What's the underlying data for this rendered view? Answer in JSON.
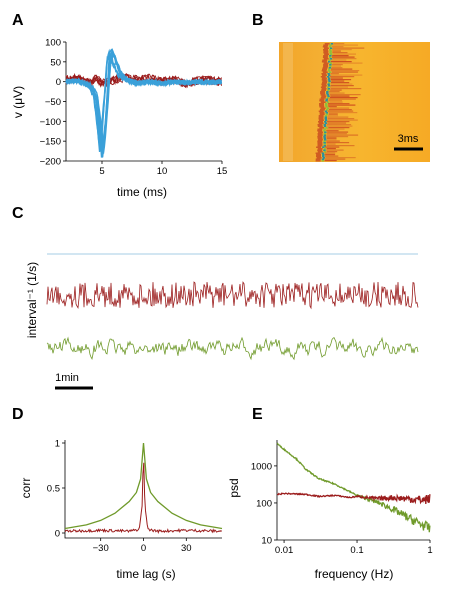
{
  "panels": {
    "a": "A",
    "b": "B",
    "c": "C",
    "d": "D",
    "e": "E"
  },
  "colors": {
    "blue": "#3aa0d9",
    "red": "#9b1c1c",
    "green": "#6f9a2a",
    "lightblue": "#b8d8ea"
  },
  "scalebars": {
    "b": "3ms",
    "c": "1min"
  },
  "chart_data": [
    {
      "id": "A",
      "type": "line",
      "xlabel": "time (ms)",
      "ylabel": "v (μV)",
      "xlim": [
        2,
        15
      ],
      "ylim": [
        -200,
        100
      ],
      "xticks": [
        "5",
        "10",
        "15"
      ],
      "yticks": [
        "100",
        "50",
        "0",
        "−50",
        "−100",
        "−150",
        "−200"
      ],
      "series": [
        {
          "color": "red",
          "x": [
            2,
            3,
            4,
            4.5,
            5,
            5.5,
            6,
            7,
            8,
            9,
            10,
            11,
            12,
            13,
            14,
            15
          ],
          "y": [
            5,
            8,
            -5,
            10,
            -5,
            0,
            5,
            10,
            5,
            8,
            0,
            5,
            -5,
            3,
            5,
            0
          ]
        },
        {
          "color": "blue",
          "x": [
            2,
            3,
            4,
            4.5,
            4.8,
            5,
            5.2,
            5.4,
            5.6,
            5.8,
            6,
            6.5,
            7,
            8,
            9,
            10,
            11,
            12,
            13,
            14,
            15
          ],
          "y": [
            0,
            2,
            -10,
            -40,
            -120,
            -185,
            -120,
            -40,
            60,
            75,
            60,
            20,
            5,
            -5,
            0,
            -5,
            0,
            -3,
            0,
            -2,
            0
          ]
        }
      ]
    },
    {
      "id": "B",
      "type": "heatmap",
      "colormap": "orange-red"
    },
    {
      "id": "C",
      "type": "line",
      "ylabel": "interval⁻¹ (1/s)",
      "series": [
        {
          "color": "lightblue"
        },
        {
          "color": "red"
        },
        {
          "color": "green"
        }
      ]
    },
    {
      "id": "D",
      "type": "line",
      "xlabel": "time lag (s)",
      "ylabel": "corr",
      "xlim": [
        -55,
        55
      ],
      "ylim": [
        0,
        1
      ],
      "xticks": [
        "−30",
        "0",
        "30"
      ],
      "yticks": [
        "0",
        "0.5",
        "1"
      ],
      "series": [
        {
          "color": "green",
          "x": [
            -55,
            -40,
            -30,
            -20,
            -10,
            -5,
            -2,
            0,
            2,
            5,
            10,
            20,
            30,
            40,
            55
          ],
          "y": [
            0.05,
            0.09,
            0.14,
            0.22,
            0.35,
            0.45,
            0.6,
            1.0,
            0.6,
            0.45,
            0.35,
            0.22,
            0.14,
            0.09,
            0.05
          ]
        },
        {
          "color": "red",
          "x": [
            -55,
            -30,
            -10,
            -3,
            -1,
            0,
            1,
            3,
            10,
            30,
            55
          ],
          "y": [
            0.02,
            0.03,
            0.02,
            0.04,
            0.3,
            0.9,
            0.3,
            0.04,
            0.02,
            0.03,
            0.02
          ]
        }
      ]
    },
    {
      "id": "E",
      "type": "line",
      "xlabel": "frequency (Hz)",
      "ylabel": "psd",
      "xscale": "log",
      "yscale": "log",
      "xlim": [
        0.008,
        1
      ],
      "ylim": [
        10,
        5000
      ],
      "xticks": [
        "0.01",
        "0.1",
        "1"
      ],
      "yticks": [
        "10",
        "100",
        "1000"
      ],
      "series": [
        {
          "color": "green",
          "x": [
            0.008,
            0.01,
            0.015,
            0.02,
            0.03,
            0.05,
            0.08,
            0.1,
            0.2,
            0.3,
            0.5,
            0.8,
            1
          ],
          "y": [
            4000,
            2800,
            1500,
            800,
            450,
            320,
            200,
            160,
            100,
            70,
            40,
            25,
            20
          ]
        },
        {
          "color": "red",
          "x": [
            0.008,
            0.01,
            0.02,
            0.03,
            0.05,
            0.08,
            0.1,
            0.2,
            0.3,
            0.5,
            0.8,
            1
          ],
          "y": [
            170,
            180,
            170,
            150,
            160,
            140,
            150,
            130,
            140,
            130,
            120,
            130
          ]
        }
      ]
    }
  ]
}
